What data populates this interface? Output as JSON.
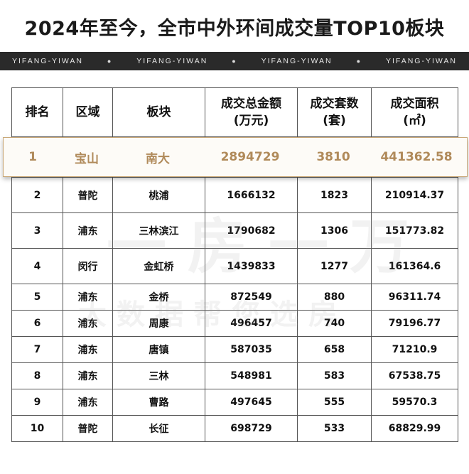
{
  "title": "2024年至今，全市中外环间成交量TOP10板块",
  "banner": {
    "brand": "YIFANG-YIWAN",
    "repeat": [
      "YIFANG-YIWAN",
      "YIFANG-YIWAN",
      "YIFANG-YIWAN",
      "YIFANG-YIWAN"
    ]
  },
  "watermark": {
    "line1": "一房一万",
    "line2": "大数据帮您选房"
  },
  "table": {
    "headers": {
      "rank": "排名",
      "district": "区域",
      "block": "板块",
      "amount": "成交总金额\n(万元)",
      "units": "成交套数\n(套)",
      "area": "成交面积\n(㎡)"
    },
    "highlight_color": "#b08a5a",
    "rows": [
      {
        "rank": "1",
        "district": "宝山",
        "block": "南大",
        "amount": "2894729",
        "units": "3810",
        "area": "441362.58"
      },
      {
        "rank": "2",
        "district": "普陀",
        "block": "桃浦",
        "amount": "1666132",
        "units": "1823",
        "area": "210914.37"
      },
      {
        "rank": "3",
        "district": "浦东",
        "block": "三林滨江",
        "amount": "1790682",
        "units": "1306",
        "area": "151773.82"
      },
      {
        "rank": "4",
        "district": "闵行",
        "block": "金虹桥",
        "amount": "1439833",
        "units": "1277",
        "area": "161364.6"
      },
      {
        "rank": "5",
        "district": "浦东",
        "block": "金桥",
        "amount": "872549",
        "units": "880",
        "area": "96311.74"
      },
      {
        "rank": "6",
        "district": "浦东",
        "block": "周康",
        "amount": "496457",
        "units": "740",
        "area": "79196.77"
      },
      {
        "rank": "7",
        "district": "浦东",
        "block": "唐镇",
        "amount": "587035",
        "units": "658",
        "area": "71210.9"
      },
      {
        "rank": "8",
        "district": "浦东",
        "block": "三林",
        "amount": "548981",
        "units": "583",
        "area": "67538.75"
      },
      {
        "rank": "9",
        "district": "浦东",
        "block": "曹路",
        "amount": "497645",
        "units": "555",
        "area": "59570.3"
      },
      {
        "rank": "10",
        "district": "普陀",
        "block": "长征",
        "amount": "698729",
        "units": "533",
        "area": "68829.99"
      }
    ]
  }
}
